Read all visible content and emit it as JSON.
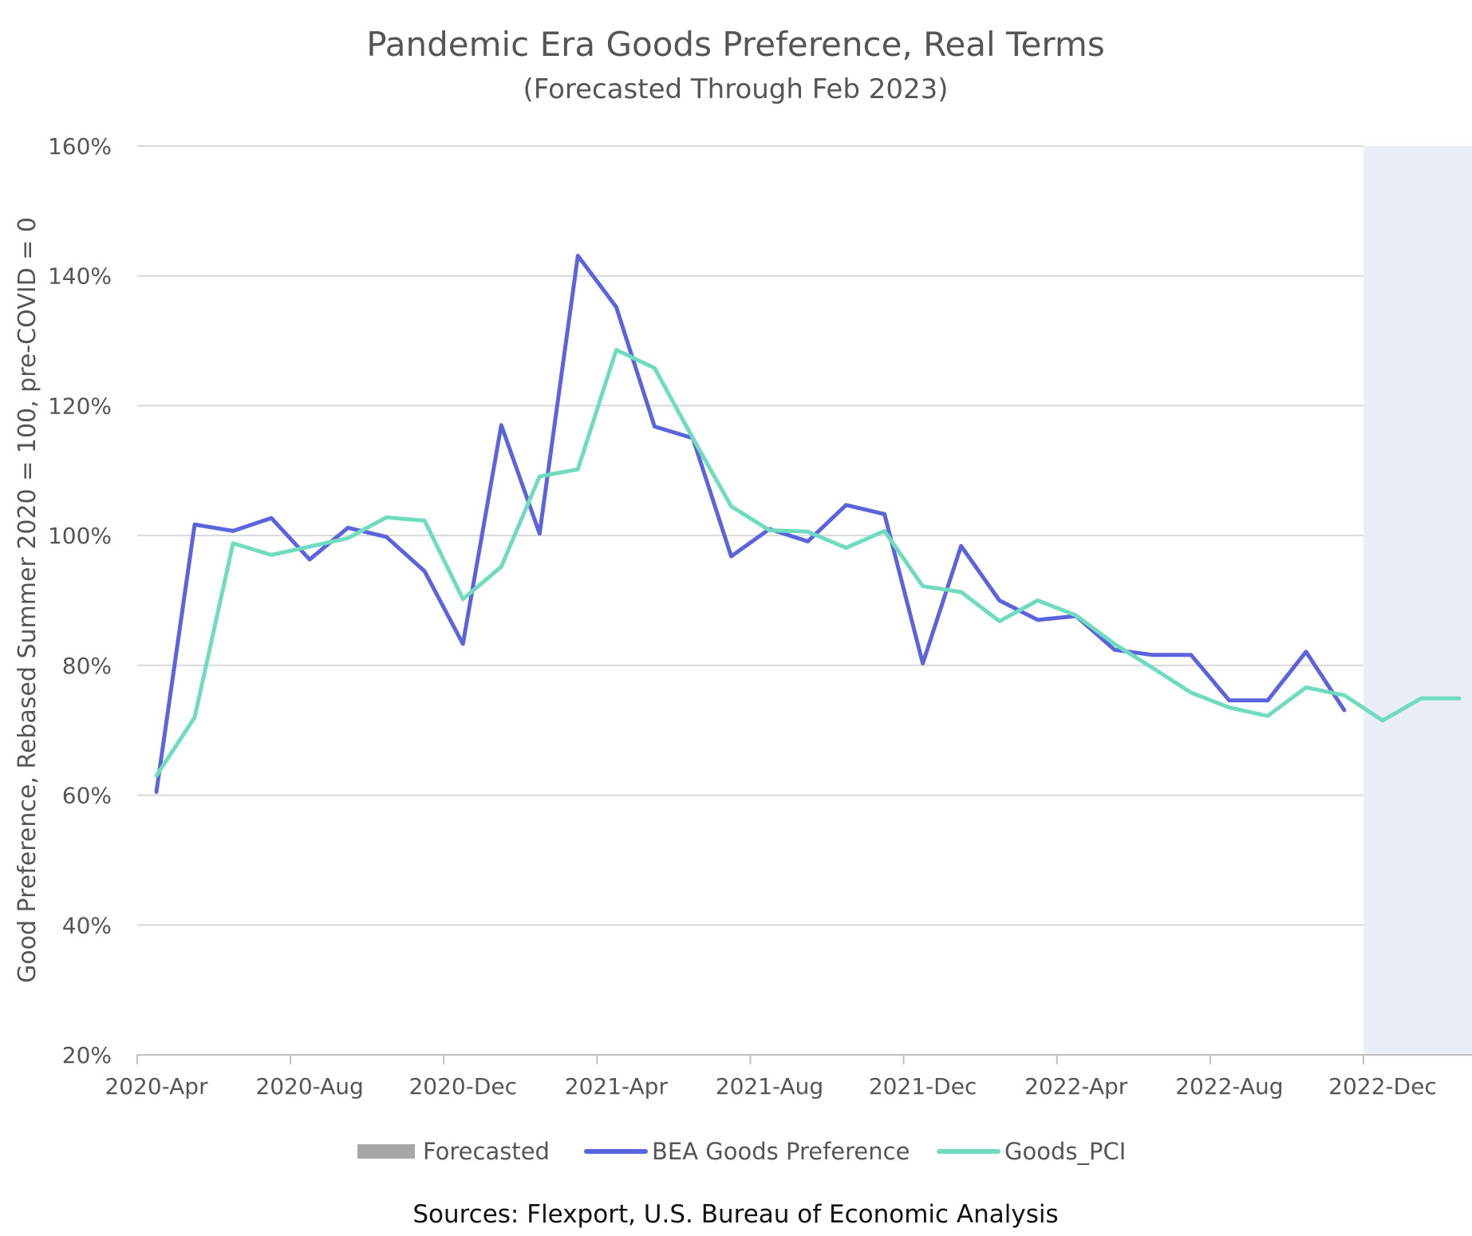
{
  "chart_data": {
    "type": "line",
    "title": "Pandemic Era Goods Preference, Real Terms",
    "subtitle": "(Forecasted Through Feb 2023)",
    "ylabel": "Good Preference, Rebased Summer 2020 = 100, pre-COVID = 0",
    "ylim": [
      20,
      160
    ],
    "y_ticks": [
      "20%",
      "40%",
      "60%",
      "80%",
      "100%",
      "120%",
      "140%",
      "160%"
    ],
    "x_tick_labels": [
      "2020-Apr",
      "2020-Aug",
      "2020-Dec",
      "2021-Apr",
      "2021-Aug",
      "2021-Dec",
      "2022-Apr",
      "2022-Aug",
      "2022-Dec"
    ],
    "x": [
      "2020-Apr",
      "2020-May",
      "2020-Jun",
      "2020-Jul",
      "2020-Aug",
      "2020-Sep",
      "2020-Oct",
      "2020-Nov",
      "2020-Dec",
      "2021-Jan",
      "2021-Feb",
      "2021-Mar",
      "2021-Apr",
      "2021-May",
      "2021-Jun",
      "2021-Jul",
      "2021-Aug",
      "2021-Sep",
      "2021-Oct",
      "2021-Nov",
      "2021-Dec",
      "2022-Jan",
      "2022-Feb",
      "2022-Mar",
      "2022-Apr",
      "2022-May",
      "2022-Jun",
      "2022-Jul",
      "2022-Aug",
      "2022-Sep",
      "2022-Oct",
      "2022-Nov",
      "2022-Dec",
      "2023-Jan",
      "2023-Feb"
    ],
    "forecast_range": [
      "2022-Dec",
      "2023-Feb"
    ],
    "series": [
      {
        "name": "BEA Goods Preference",
        "color": "#5b64dc",
        "values": [
          60.5,
          101.7,
          100.7,
          102.7,
          96.3,
          101.2,
          99.8,
          94.5,
          83.3,
          117.0,
          100.3,
          143.1,
          135.2,
          116.8,
          115.0,
          96.8,
          101.0,
          99.1,
          104.7,
          103.3,
          80.3,
          98.4,
          90.0,
          87.0,
          87.6,
          82.4,
          81.6,
          81.6,
          74.6,
          74.6,
          82.1,
          73.1,
          null,
          null,
          null
        ]
      },
      {
        "name": "Goods_PCI",
        "color": "#6fdcc0",
        "values": [
          63.0,
          72.0,
          98.8,
          97.0,
          98.3,
          99.6,
          102.8,
          102.3,
          90.2,
          95.2,
          109.1,
          110.2,
          128.6,
          125.8,
          115.0,
          104.5,
          100.8,
          100.6,
          98.1,
          100.7,
          92.2,
          91.3,
          86.8,
          90.0,
          87.7,
          83.3,
          79.6,
          75.8,
          73.5,
          72.2,
          76.6,
          75.4,
          71.5,
          74.9,
          74.9
        ]
      }
    ],
    "legend": {
      "placement": "bottom",
      "items": [
        {
          "label": "Forecasted",
          "color": "#a6a6a6",
          "kind": "box"
        },
        {
          "label": "BEA Goods Preference",
          "color": "#5b64dc",
          "kind": "line"
        },
        {
          "label": "Goods_PCI",
          "color": "#6fdcc0",
          "kind": "line"
        }
      ]
    },
    "grid": true,
    "forecast_shade_color": "#e9edf5",
    "source_note": "Sources: Flexport, U.S. Bureau of Economic Analysis"
  }
}
